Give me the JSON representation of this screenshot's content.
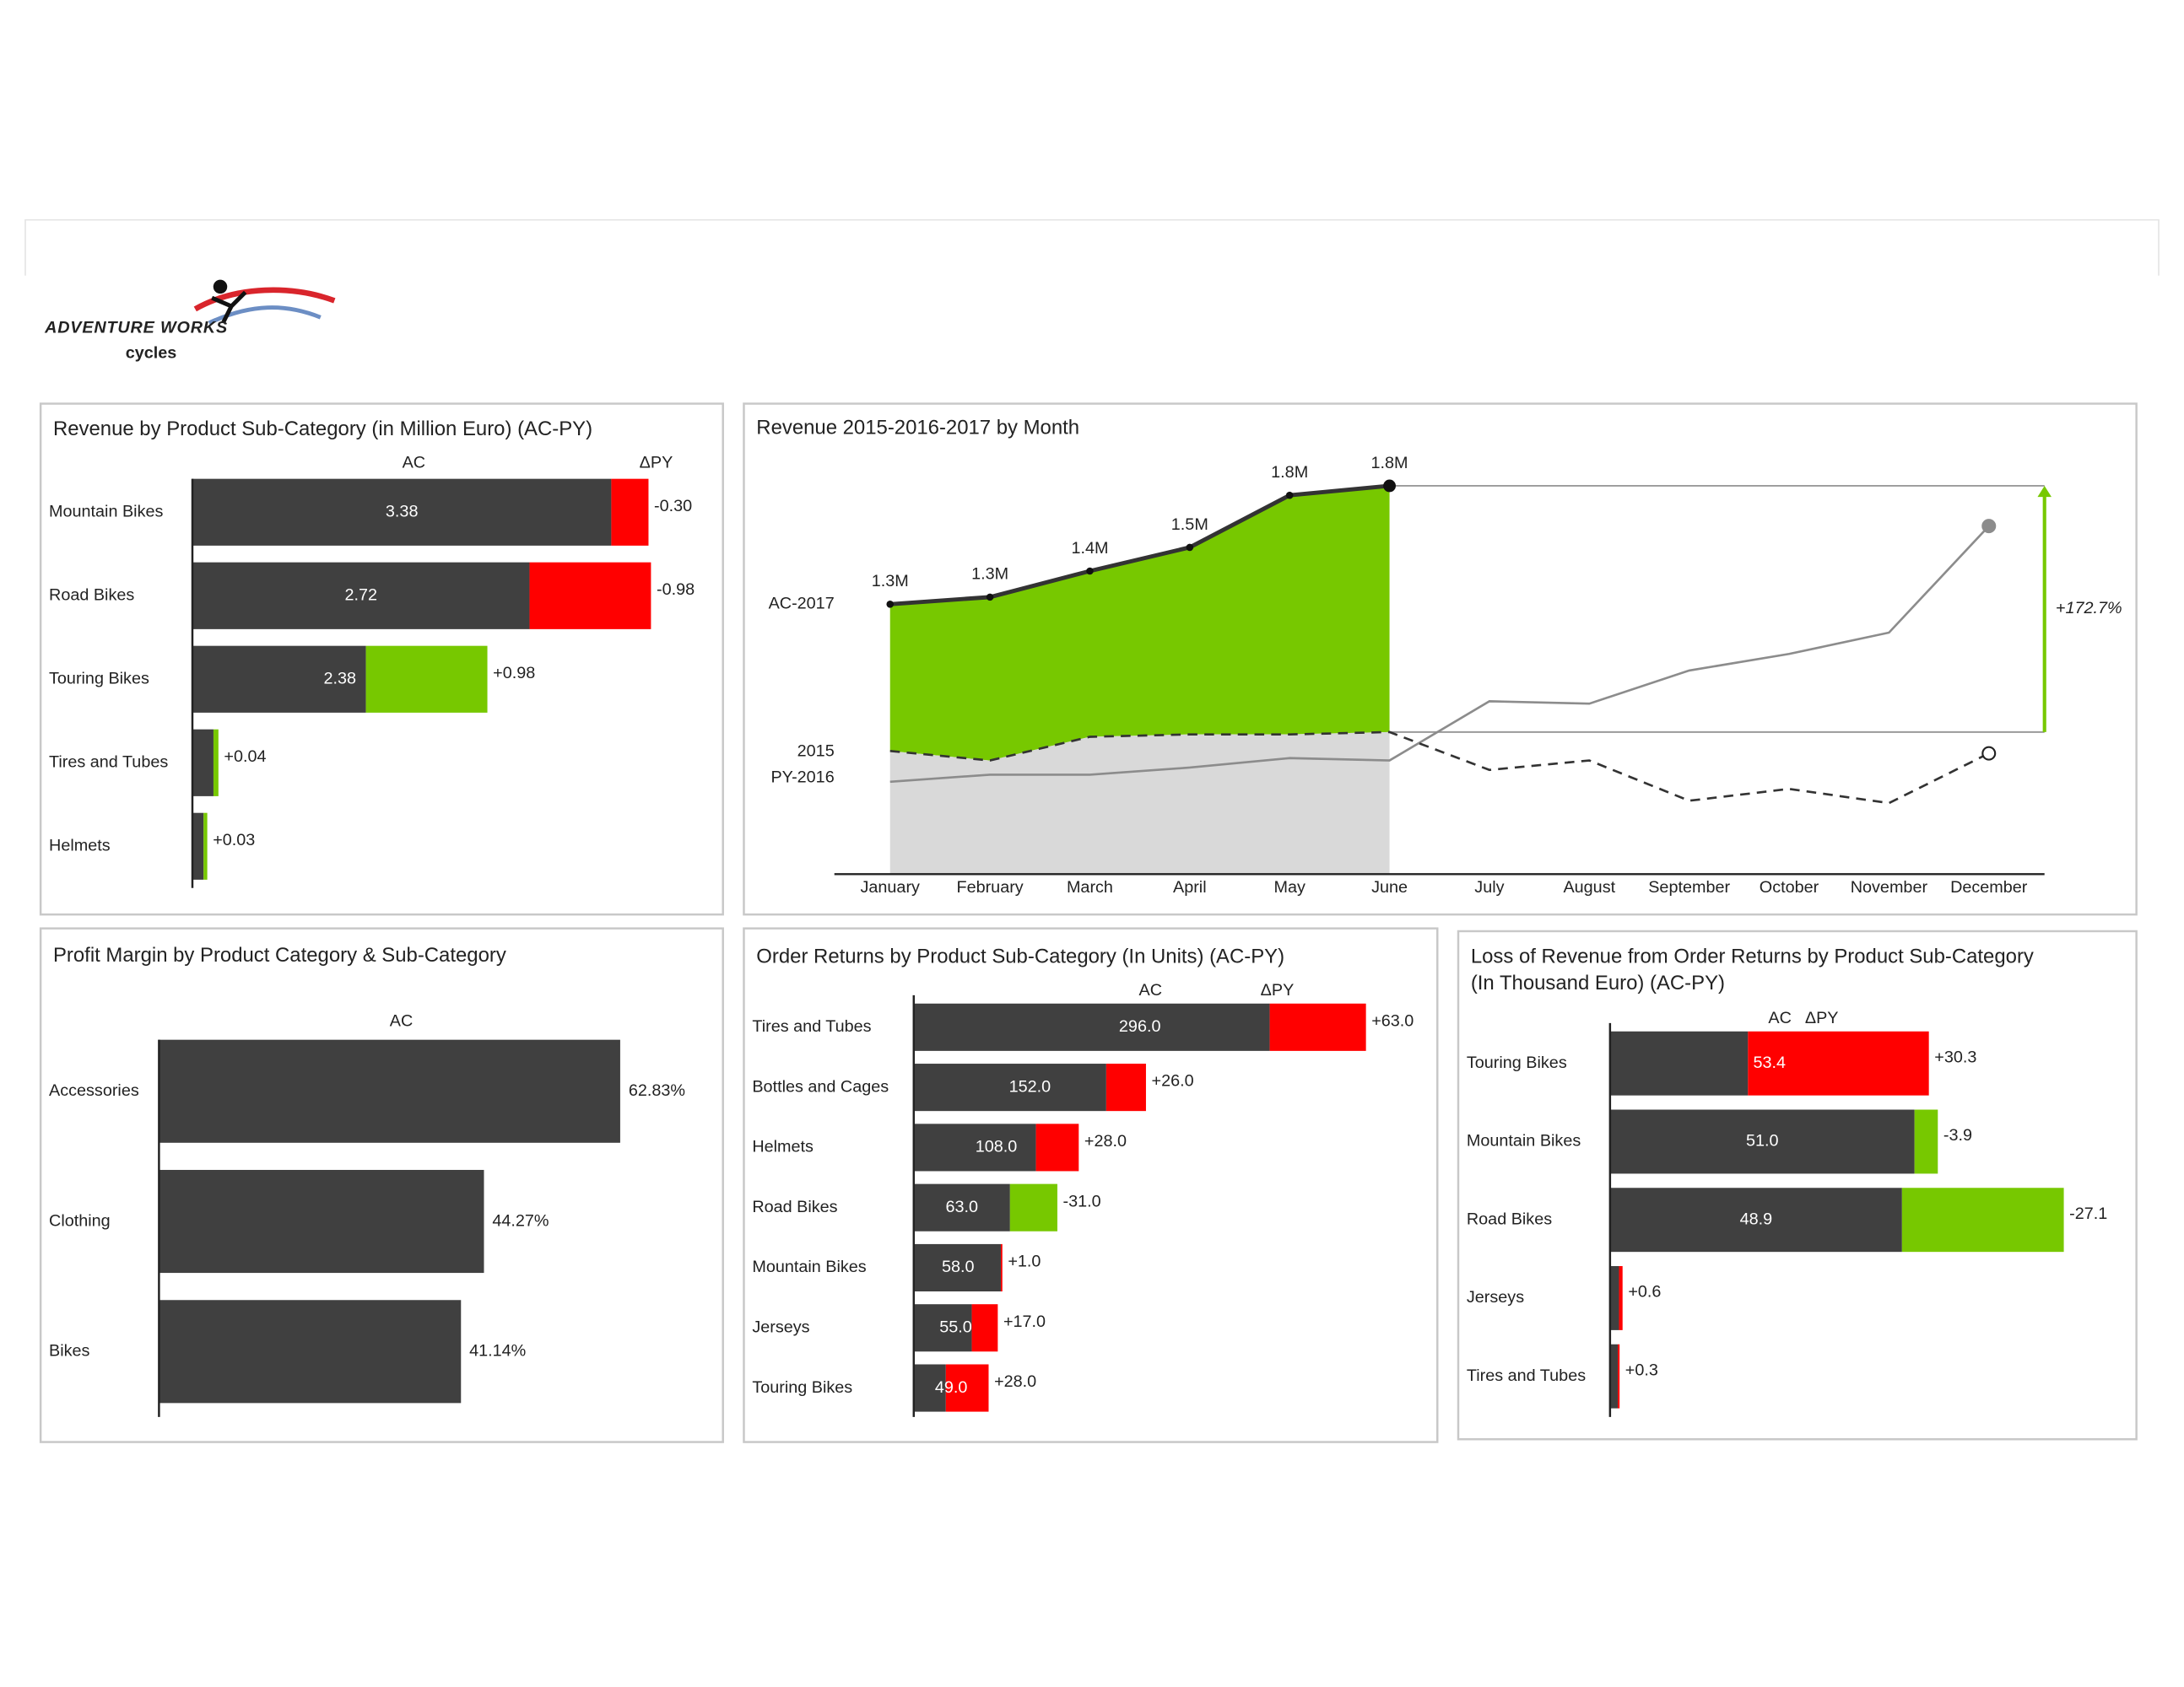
{
  "logo": {
    "brand": "ADVENTURE WORKS",
    "name": "cycles"
  },
  "chart_data": [
    {
      "type": "variance",
      "title": "Revenue by Product Sub-Category (in Million Euro) (AC-PY)",
      "categories": [
        "Mountain Bikes",
        "Road Bikes",
        "Touring Bikes",
        "Tires and Tubes",
        "Helmets"
      ],
      "series": [
        {
          "name": "AC",
          "color": "#404040",
          "values": [
            3.38,
            2.72,
            2.38,
            0.21,
            0.12
          ]
        },
        {
          "name": "ΔPY",
          "values": [
            -0.3,
            -0.98,
            0.98,
            0.04,
            0.03
          ],
          "value_labels": [
            "-0.30",
            "-0.98",
            "+0.98",
            "+0.04",
            "+0.03"
          ]
        }
      ],
      "pos_color": "#77c800",
      "neg_color": "#ff0000",
      "xlim": [
        0,
        4
      ]
    },
    {
      "type": "line",
      "title": "Revenue 2015-2016-2017 by Month",
      "categories": [
        "January",
        "February",
        "March",
        "April",
        "May",
        "June",
        "July",
        "August",
        "September",
        "October",
        "November",
        "December"
      ],
      "series": [
        {
          "name": "AC-2017",
          "color": "#333333",
          "fill": "#77c800",
          "values": [
            1.3,
            1.33,
            1.44,
            1.54,
            1.76,
            1.8,
            null,
            null,
            null,
            null,
            null,
            null
          ],
          "value_labels": [
            "1.3M",
            "1.3M",
            "1.4M",
            "1.5M",
            "1.8M",
            "1.8M",
            null,
            null,
            null,
            null,
            null,
            null
          ]
        },
        {
          "name": "2015",
          "color": "#8c8c8c",
          "end_marker": "filled",
          "values": [
            0.55,
            0.58,
            0.58,
            0.61,
            0.65,
            0.64,
            0.89,
            0.88,
            1.02,
            1.09,
            1.18,
            1.63
          ]
        },
        {
          "name": "PY-2016",
          "color": "#333333",
          "dashed": true,
          "fill": "#d9d9d9",
          "end_marker": "open",
          "values": [
            0.68,
            0.64,
            0.74,
            0.75,
            0.75,
            0.76,
            0.6,
            0.64,
            0.47,
            0.52,
            0.46,
            0.67
          ]
        }
      ],
      "ylim": [
        0.16,
        2.0
      ],
      "annotation": "+172.7%",
      "annotation_color": "#77c800"
    },
    {
      "type": "bar",
      "title": "Profit Margin by Product Category & Sub-Category",
      "categories": [
        "Accessories",
        "Clothing",
        "Bikes"
      ],
      "series": [
        {
          "name": "AC",
          "color": "#404040",
          "values": [
            62.83,
            44.27,
            41.14
          ],
          "value_labels": [
            "62.83%",
            "44.27%",
            "41.14%"
          ]
        }
      ],
      "xlim": [
        0,
        70
      ]
    },
    {
      "type": "variance",
      "title": "Order Returns by Product Sub-Category (In Units) (AC-PY)",
      "categories": [
        "Tires and Tubes",
        "Bottles and Cages",
        "Helmets",
        "Road Bikes",
        "Mountain Bikes",
        "Jerseys",
        "Touring Bikes"
      ],
      "series": [
        {
          "name": "AC",
          "color": "#404040",
          "values": [
            296,
            152,
            108,
            63,
            58,
            55,
            49
          ],
          "value_labels": [
            "296.0",
            "152.0",
            "108.0",
            "63.0",
            "58.0",
            "55.0",
            "49.0"
          ]
        },
        {
          "name": "ΔPY",
          "values": [
            63,
            26,
            28,
            -31,
            1,
            17,
            28
          ],
          "value_labels": [
            "+63.0",
            "+26.0",
            "+28.0",
            "-31.0",
            "+1.0",
            "+17.0",
            "+28.0"
          ]
        }
      ],
      "pos_color": "#ff0000",
      "neg_color": "#77c800",
      "xlim": [
        0,
        340
      ]
    },
    {
      "type": "variance",
      "title": "Loss of Revenue from Order Returns by Product Sub-Category",
      "subtitle": "(In Thousand Euro) (AC-PY)",
      "categories": [
        "Touring Bikes",
        "Mountain Bikes",
        "Road Bikes",
        "Jerseys",
        "Tires and Tubes"
      ],
      "series": [
        {
          "name": "AC",
          "color": "#404040",
          "values": [
            53.4,
            51.0,
            48.9,
            2.1,
            1.6
          ],
          "value_labels": [
            "53.4",
            "51.0",
            "48.9",
            null,
            null
          ]
        },
        {
          "name": "ΔPY",
          "values": [
            30.3,
            -3.9,
            -27.1,
            0.6,
            0.3
          ],
          "value_labels": [
            "+30.3",
            "-3.9",
            "-27.1",
            "+0.6",
            "+0.3"
          ]
        }
      ],
      "pos_color": "#ff0000",
      "neg_color": "#77c800",
      "xlim": [
        0,
        80
      ]
    }
  ]
}
